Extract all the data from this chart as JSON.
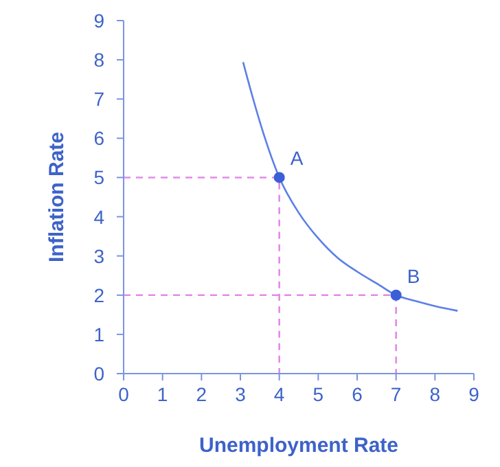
{
  "chart_data": {
    "type": "line",
    "xlabel": "Unemployment Rate",
    "ylabel": "Inflation Rate",
    "xlim": [
      0,
      9
    ],
    "ylim": [
      0,
      9
    ],
    "xticks": [
      0,
      1,
      2,
      3,
      4,
      5,
      6,
      7,
      8,
      9
    ],
    "yticks": [
      0,
      1,
      2,
      3,
      4,
      5,
      6,
      7,
      8,
      9
    ],
    "grid": false,
    "series": [
      {
        "color": "#e38ae6",
        "line_style": "dashed",
        "marker": "none",
        "x": [
          0,
          4,
          4
        ],
        "values": [
          5,
          5,
          0
        ]
      },
      {
        "color": "#e38ae6",
        "line_style": "dashed",
        "marker": "none",
        "x": [
          0,
          7,
          7
        ],
        "values": [
          2,
          2,
          0
        ]
      },
      {
        "color": "#5b7fe6",
        "line_style": "solid",
        "marker": "none",
        "x": [
          3.07,
          3.3,
          3.6,
          4,
          4.5,
          5,
          5.5,
          6,
          6.5,
          7,
          7.5,
          8,
          8.58
        ],
        "values": [
          7.94,
          7.1,
          6.1,
          5,
          4.1,
          3.45,
          2.95,
          2.6,
          2.3,
          2,
          1.85,
          1.72,
          1.6
        ]
      },
      {
        "type": "scatter",
        "color": "#3b5fd6",
        "marker": "circle",
        "x": [
          4,
          7
        ],
        "values": [
          5,
          2
        ]
      }
    ],
    "annotations": [
      {
        "text": "A",
        "x": 4,
        "y": 5
      },
      {
        "text": "B",
        "x": 7,
        "y": 2
      }
    ]
  }
}
